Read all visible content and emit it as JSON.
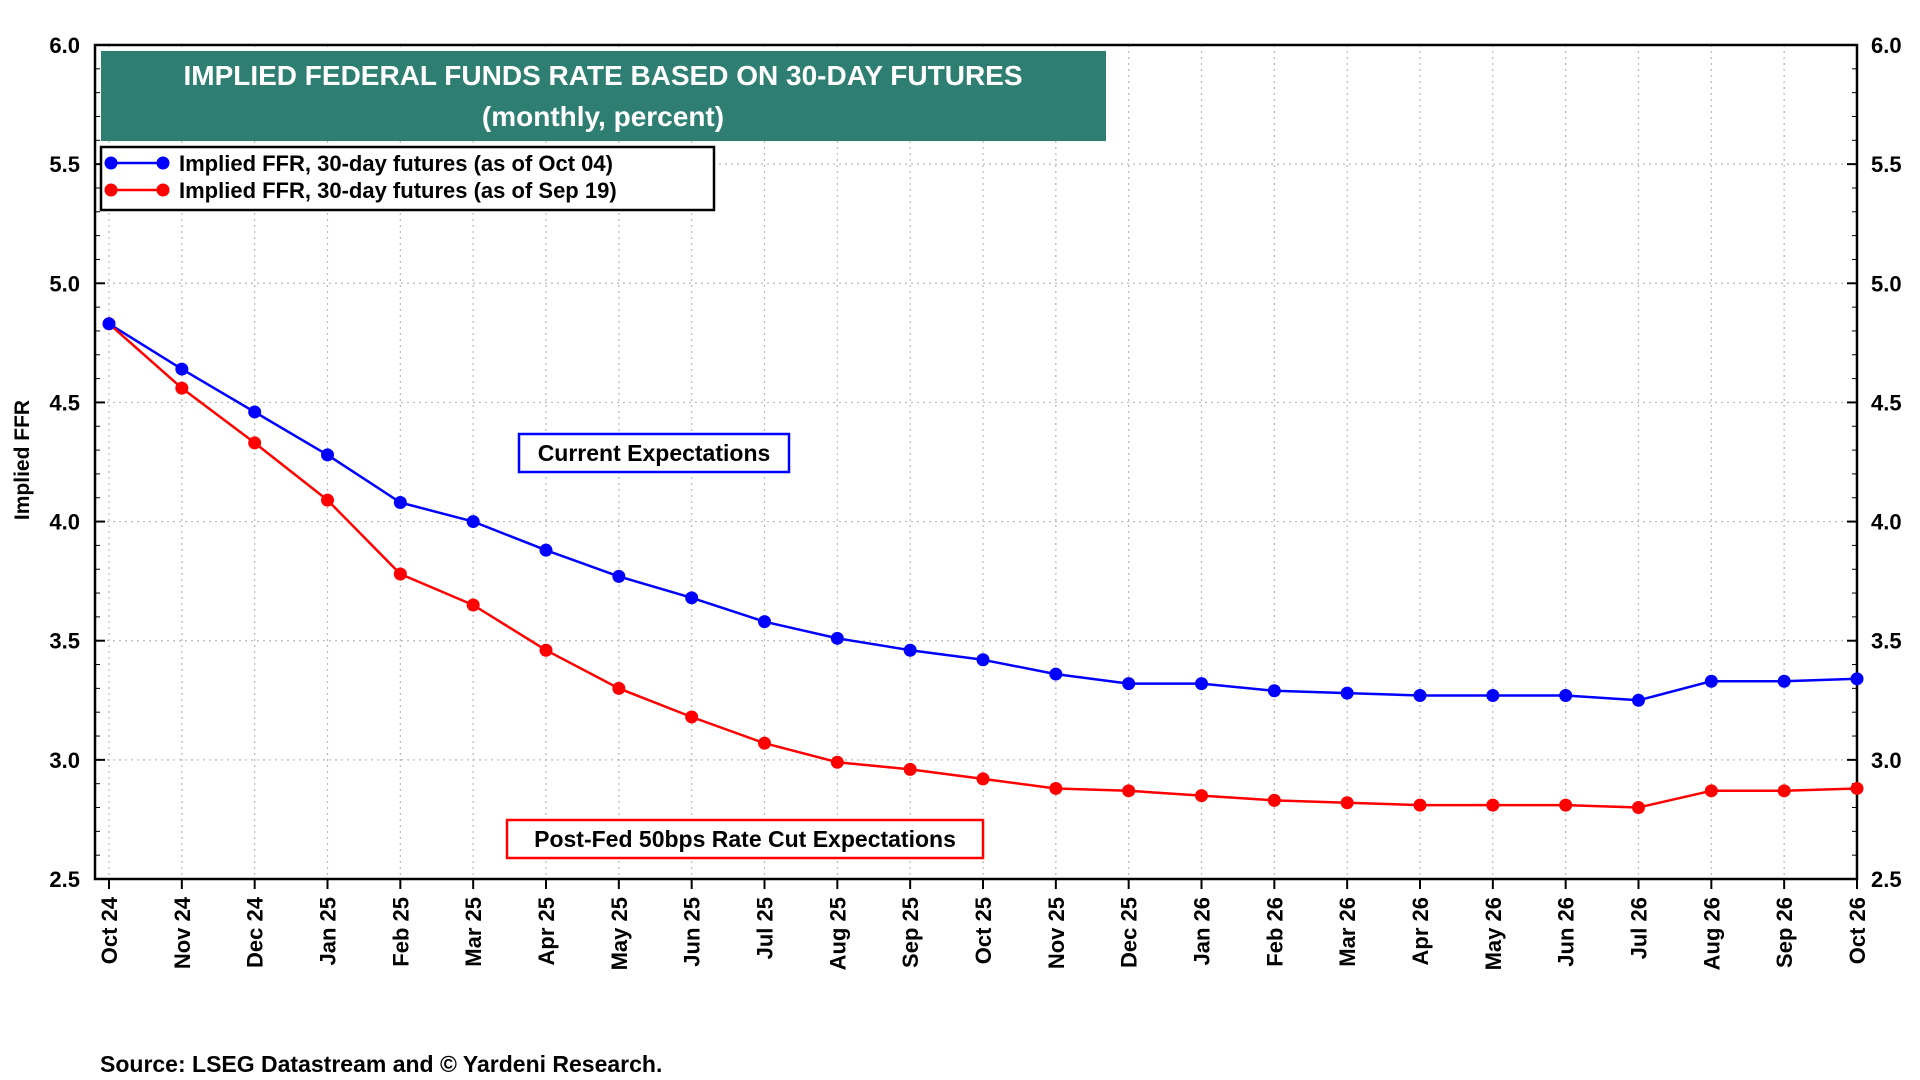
{
  "chart_data": {
    "type": "line",
    "title": "IMPLIED FEDERAL FUNDS RATE BASED ON 30-DAY FUTURES",
    "subtitle": "(monthly, percent)",
    "ylabel": "Implied FFR",
    "ylim": [
      2.5,
      6.0
    ],
    "yticks": [
      "6.0",
      "5.5",
      "5.0",
      "4.5",
      "4.0",
      "3.5",
      "3.0",
      "2.5"
    ],
    "grid": true,
    "legend_position": "top-left",
    "categories": [
      "Oct 24",
      "Nov 24",
      "Dec 24",
      "Jan 25",
      "Feb 25",
      "Mar 25",
      "Apr 25",
      "May 25",
      "Jun 25",
      "Jul 25",
      "Aug 25",
      "Sep 25",
      "Oct 25",
      "Nov 25",
      "Dec 25",
      "Jan 26",
      "Feb 26",
      "Mar 26",
      "Apr 26",
      "May 26",
      "Jun 26",
      "Jul 26",
      "Aug 26",
      "Sep 26",
      "Oct 26"
    ],
    "series": [
      {
        "name": "Implied FFR, 30-day futures (as of Oct 04)",
        "color": "#0000ff",
        "values": [
          4.83,
          4.64,
          4.46,
          4.28,
          4.08,
          4.0,
          3.88,
          3.77,
          3.68,
          3.58,
          3.51,
          3.46,
          3.42,
          3.36,
          3.32,
          3.32,
          3.29,
          3.28,
          3.27,
          3.27,
          3.27,
          3.25,
          3.33,
          3.33,
          3.34
        ]
      },
      {
        "name": "Implied FFR, 30-day futures (as of Sep 19)",
        "color": "#ff0000",
        "values": [
          4.83,
          4.56,
          4.33,
          4.09,
          3.78,
          3.65,
          3.46,
          3.3,
          3.18,
          3.07,
          2.99,
          2.96,
          2.92,
          2.88,
          2.87,
          2.85,
          2.83,
          2.82,
          2.81,
          2.81,
          2.81,
          2.8,
          2.87,
          2.87,
          2.88
        ]
      }
    ],
    "annotations": [
      {
        "text": "Current Expectations",
        "color": "#0000ff"
      },
      {
        "text": "Post-Fed 50bps Rate Cut Expectations",
        "color": "#ff0000"
      }
    ],
    "title_bg": "#2e7f72",
    "source": "Source: LSEG Datastream and © Yardeni Research."
  }
}
